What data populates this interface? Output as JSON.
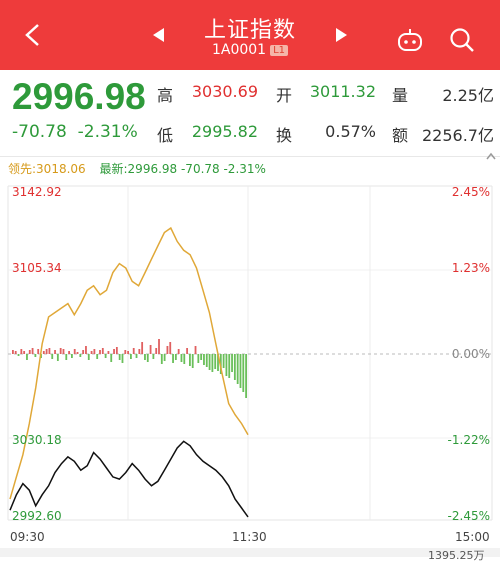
{
  "header": {
    "title": "上证指数",
    "code": "1A0001",
    "level_badge": "L1",
    "back_icon": "back-arrow-icon",
    "prev_icon": "triangle-left-icon",
    "next_icon": "triangle-right-icon",
    "robot_icon": "robot-assistant-icon",
    "search_icon": "search-icon"
  },
  "quote": {
    "price": "2996.98",
    "change": "-70.78",
    "change_pct": "-2.31%",
    "high_label": "高",
    "high": "3030.69",
    "open_label": "开",
    "open": "3011.32",
    "volume_label": "量",
    "volume": "2.25亿",
    "low_label": "低",
    "low": "2995.82",
    "turnover_label": "换",
    "turnover": "0.57%",
    "amount_label": "额",
    "amount": "2256.7亿"
  },
  "legend": {
    "lead": "领先:3018.06",
    "latest": "最新:2996.98 -70.78 -2.31%"
  },
  "chart_data": {
    "type": "line",
    "series": [
      {
        "values": [
          2997,
          3004,
          3009,
          3006,
          2999,
          3004,
          3008,
          3014,
          3018,
          3021,
          3019,
          3015,
          3017,
          3023,
          3020,
          3016,
          3012,
          3011,
          3014,
          3018,
          3015,
          3011,
          3008,
          3010,
          3015,
          3020,
          3025,
          3028,
          3026,
          3022,
          3019,
          3017,
          3015,
          3012,
          3008,
          3002,
          2998,
          2994
        ]
      },
      {
        "values": [
          3002,
          3012,
          3022,
          3036,
          3052,
          3072,
          3084,
          3086,
          3088,
          3090,
          3085,
          3090,
          3096,
          3098,
          3094,
          3096,
          3104,
          3108,
          3106,
          3100,
          3098,
          3104,
          3110,
          3116,
          3122,
          3124,
          3118,
          3114,
          3112,
          3106,
          3096,
          3086,
          3072,
          3058,
          3045,
          3040,
          3036,
          3031
        ]
      }
    ],
    "y_labels_left": [
      "3142.92",
      "3105.34",
      "3030.18",
      "2992.60"
    ],
    "y_labels_right": [
      "2.45%",
      "1.23%",
      "0.00%",
      "-1.22%",
      "-2.45%"
    ],
    "y_range": [
      2992.6,
      3142.92
    ],
    "x_labels": [
      "09:30",
      "11:30",
      "15:00"
    ],
    "volume_bars": [
      4,
      3,
      -2,
      5,
      3,
      -6,
      4,
      6,
      -3,
      5,
      -4,
      3,
      5,
      6,
      -5,
      4,
      -7,
      6,
      5,
      -6,
      3,
      -4,
      5,
      2,
      -3,
      4,
      8,
      -6,
      3,
      5,
      -5,
      4,
      6,
      -4,
      3,
      -8,
      5,
      7,
      -6,
      -9,
      4,
      3,
      -5,
      6,
      -4,
      5,
      12,
      -6,
      -8,
      9,
      -5,
      6,
      15,
      -10,
      -7,
      8,
      12,
      -9,
      -6,
      5,
      -8,
      -10,
      6,
      -12,
      -14,
      8,
      -9,
      -6,
      -11,
      -13,
      -16,
      -18,
      -15,
      -17,
      -20,
      -14,
      -22,
      -24,
      -18,
      -26,
      -30,
      -34,
      -38,
      -44
    ]
  },
  "footer": {
    "bottom_value": "1395.25万"
  }
}
